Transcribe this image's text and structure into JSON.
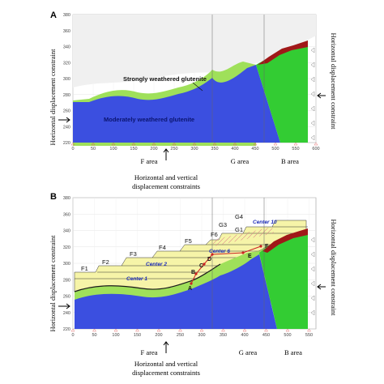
{
  "panelA": {
    "label": "A",
    "y_ticks": [
      "380",
      "360",
      "340",
      "320",
      "300",
      "280",
      "260",
      "240",
      "220"
    ],
    "x_ticks": [
      "0",
      "50",
      "100",
      "150",
      "200",
      "250",
      "300",
      "350",
      "400",
      "450",
      "500",
      "550",
      "600"
    ],
    "layer_upper": "Strongly weathered glutenite",
    "layer_lower": "Moderately weathered glutenite",
    "side_constraint": "Horizontal displacement constraint",
    "bottom_constraint_line1": "Horizontal and vertical",
    "bottom_constraint_line2": "displacement constraints",
    "areas": [
      "F area",
      "G area",
      "B area"
    ]
  },
  "panelB": {
    "label": "B",
    "y_ticks": [
      "380",
      "360",
      "340",
      "320",
      "300",
      "280",
      "260",
      "240",
      "220"
    ],
    "x_ticks": [
      "0",
      "50",
      "100",
      "150",
      "200",
      "250",
      "300",
      "350",
      "400",
      "450",
      "500",
      "550"
    ],
    "benches": [
      "F1",
      "F2",
      "F3",
      "F4",
      "F5",
      "F6",
      "G3",
      "G4",
      "G1"
    ],
    "centers": [
      "Center 1",
      "Center 2",
      "Center 6",
      "Center 10"
    ],
    "points": [
      "A",
      "B",
      "C",
      "D",
      "E",
      "F"
    ],
    "side_constraint": "Horizontal displacement constraint",
    "bottom_constraint_line1": "Horizontal and vertical",
    "bottom_constraint_line2": "displacement constraints",
    "areas": [
      "F area",
      "G area",
      "B area"
    ]
  },
  "colors": {
    "bedrock": "#3b4fe0",
    "weathered": "#9fe05a",
    "fault_block": "#33cc33",
    "fill_slope": "#f6f4a8",
    "soil_cap": "#a01818",
    "grid": "#d0d0d0"
  }
}
